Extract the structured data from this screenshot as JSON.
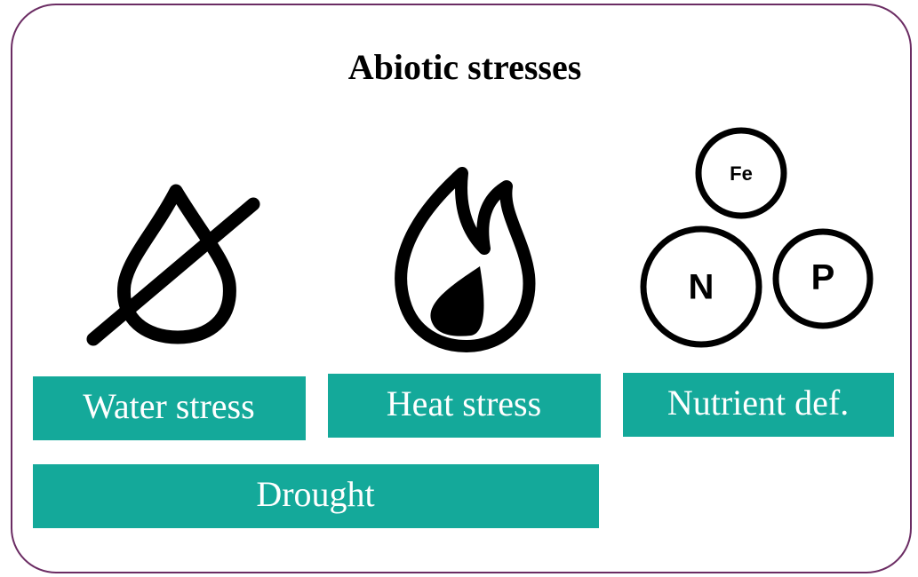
{
  "title": "Abiotic stresses",
  "labels": [
    "Water stress",
    "Heat stress",
    "Nutrient def."
  ],
  "combined": "Drought",
  "nutrients": [
    "Fe",
    "N",
    "P"
  ]
}
